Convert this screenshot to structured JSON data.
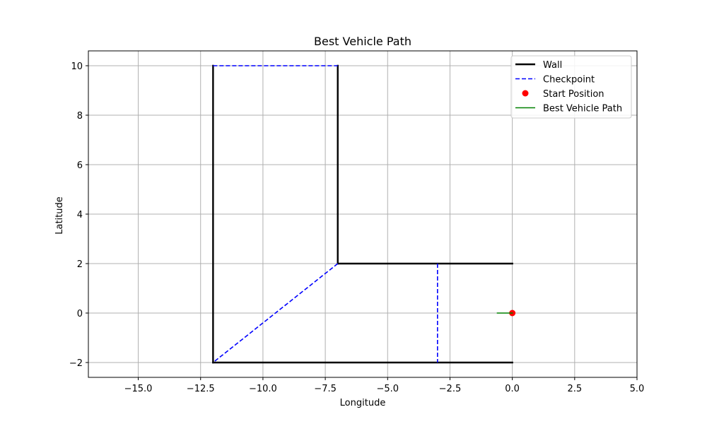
{
  "chart_data": {
    "type": "line",
    "title": "Best Vehicle Path",
    "xlabel": "Longitude",
    "ylabel": "Latitude",
    "xlim": [
      -17,
      5
    ],
    "ylim": [
      -2.6,
      10.6
    ],
    "xticks": [
      -15.0,
      -12.5,
      -10.0,
      -7.5,
      -5.0,
      -2.5,
      0.0,
      2.5,
      5.0
    ],
    "xtick_labels": [
      "−15.0",
      "−12.5",
      "−10.0",
      "−7.5",
      "−5.0",
      "−2.5",
      "0.0",
      "2.5",
      "5.0"
    ],
    "yticks": [
      -2,
      0,
      2,
      4,
      6,
      8,
      10
    ],
    "ytick_labels": [
      "−2",
      "0",
      "2",
      "4",
      "6",
      "8",
      "10"
    ],
    "grid": true,
    "legend_position": "top-right",
    "series": [
      {
        "name": "Wall",
        "style": "solid",
        "color": "#000000",
        "segments": [
          [
            [
              -12,
              -2
            ],
            [
              -12,
              10
            ]
          ],
          [
            [
              -7,
              10
            ],
            [
              -7,
              2
            ]
          ],
          [
            [
              -7,
              2
            ],
            [
              0,
              2
            ]
          ],
          [
            [
              -12,
              -2
            ],
            [
              0,
              -2
            ]
          ]
        ]
      },
      {
        "name": "Checkpoint",
        "style": "dashed",
        "color": "#0000ff",
        "segments": [
          [
            [
              -12,
              10
            ],
            [
              -7,
              10
            ]
          ],
          [
            [
              -7,
              2
            ],
            [
              -12,
              -2
            ]
          ],
          [
            [
              -3,
              2
            ],
            [
              -3,
              -2
            ]
          ]
        ]
      },
      {
        "name": "Start Position",
        "style": "marker",
        "color": "#ff0000",
        "points": [
          [
            0,
            0
          ]
        ]
      },
      {
        "name": "Best Vehicle Path",
        "style": "solid",
        "color": "#008000",
        "segments": [
          [
            [
              -0.6,
              0
            ],
            [
              0,
              0
            ]
          ]
        ]
      }
    ]
  }
}
